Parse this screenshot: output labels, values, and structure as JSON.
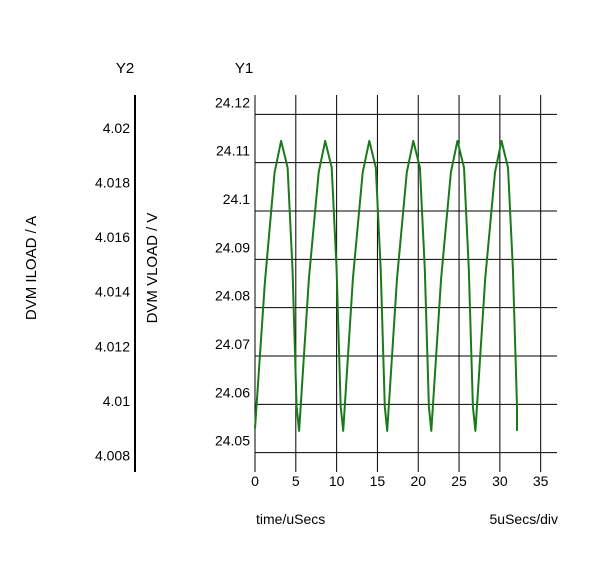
{
  "chart_data": {
    "type": "line",
    "title": "",
    "y1_header": "Y1",
    "y2_header": "Y2",
    "xlabel": "time/uSecs",
    "x_div_label": "5uSecs/div",
    "y1label": "DVM VLOAD / V",
    "y2label": "DVM ILOAD / A",
    "xlim": [
      0,
      37
    ],
    "xticks": [
      "0",
      "5",
      "10",
      "15",
      "20",
      "25",
      "30",
      "35"
    ],
    "y1lim": [
      24.046,
      24.124
    ],
    "y1ticks": [
      "24.05",
      "24.06",
      "24.07",
      "24.08",
      "24.09",
      "24.1",
      "24.11",
      "24.12"
    ],
    "y2lim": [
      4.0074,
      4.0212
    ],
    "y2ticks": [
      "4.008",
      "4.01",
      "4.012",
      "4.014",
      "4.016",
      "4.018",
      "4.02"
    ],
    "grid": true,
    "line_color": "#1a7a1a",
    "series": [
      {
        "name": "",
        "axis": "y1",
        "x": [
          0.0,
          1.2,
          2.4,
          3.2,
          4.0,
          4.6,
          5.1,
          5.4,
          6.6,
          7.8,
          8.6,
          9.4,
          10.0,
          10.5,
          10.8,
          12.0,
          13.2,
          14.0,
          14.8,
          15.4,
          15.9,
          16.2,
          17.4,
          18.6,
          19.4,
          20.2,
          20.8,
          21.3,
          21.6,
          22.8,
          24.0,
          24.8,
          25.6,
          26.2,
          26.7,
          27.0,
          28.2,
          29.4,
          30.2,
          31.0,
          31.6,
          32.1,
          32.1
        ],
        "y": [
          24.055,
          24.085,
          24.108,
          24.1145,
          24.109,
          24.088,
          24.0595,
          24.0545,
          24.086,
          24.108,
          24.1145,
          24.109,
          24.088,
          24.0595,
          24.0545,
          24.086,
          24.108,
          24.1145,
          24.109,
          24.088,
          24.0595,
          24.0545,
          24.086,
          24.108,
          24.1145,
          24.109,
          24.088,
          24.0595,
          24.0545,
          24.086,
          24.108,
          24.1145,
          24.109,
          24.088,
          24.0595,
          24.0545,
          24.086,
          24.108,
          24.1145,
          24.109,
          24.088,
          24.0595,
          24.0545
        ]
      }
    ]
  }
}
